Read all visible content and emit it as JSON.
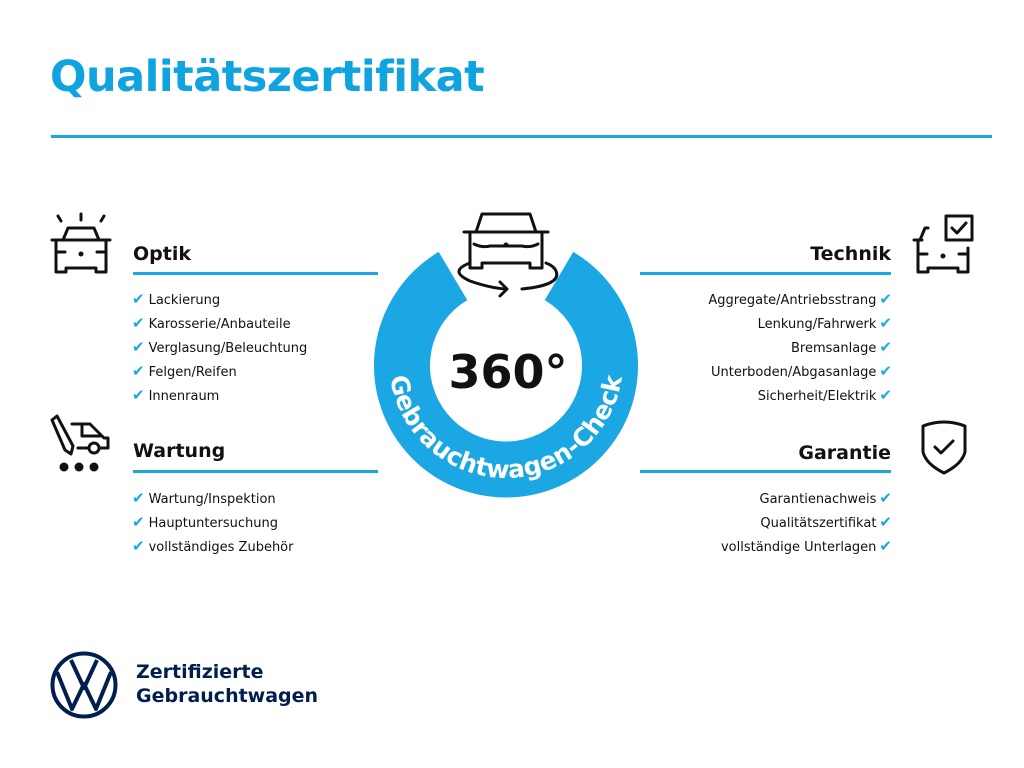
{
  "title": "Qualitätszertifikat",
  "colors": {
    "accent": "#1aa7e4",
    "brand": "#001e50",
    "text": "#111111"
  },
  "badge": {
    "number": "360°",
    "ring_text": "Gebrauchtwagen-Check",
    "icon": "car-rotate-icon"
  },
  "sections": {
    "optik": {
      "title": "Optik",
      "icon": "car-lights-icon",
      "items": [
        "Lackierung",
        "Karosserie/Anbauteile",
        "Verglasung/Beleuchtung",
        "Felgen/Reifen",
        "Innenraum"
      ]
    },
    "wartung": {
      "title": "Wartung",
      "icon": "van-wrench-icon",
      "items": [
        "Wartung/Inspektion",
        "Hauptuntersuchung",
        "vollständiges Zubehör"
      ]
    },
    "technik": {
      "title": "Technik",
      "icon": "car-checkbox-icon",
      "items": [
        "Aggregate/Antriebsstrang",
        "Lenkung/Fahrwerk",
        "Bremsanlage",
        "Unterboden/Abgasanlage",
        "Sicherheit/Elektrik"
      ]
    },
    "garantie": {
      "title": "Garantie",
      "icon": "shield-check-icon",
      "items": [
        "Garantienachweis",
        "Qualitätszertifikat",
        "vollständige Unterlagen"
      ]
    }
  },
  "check_glyph": "✔",
  "footer": {
    "line1": "Zertifizierte",
    "line2": "Gebrauchtwagen",
    "logo": "vw-logo"
  }
}
